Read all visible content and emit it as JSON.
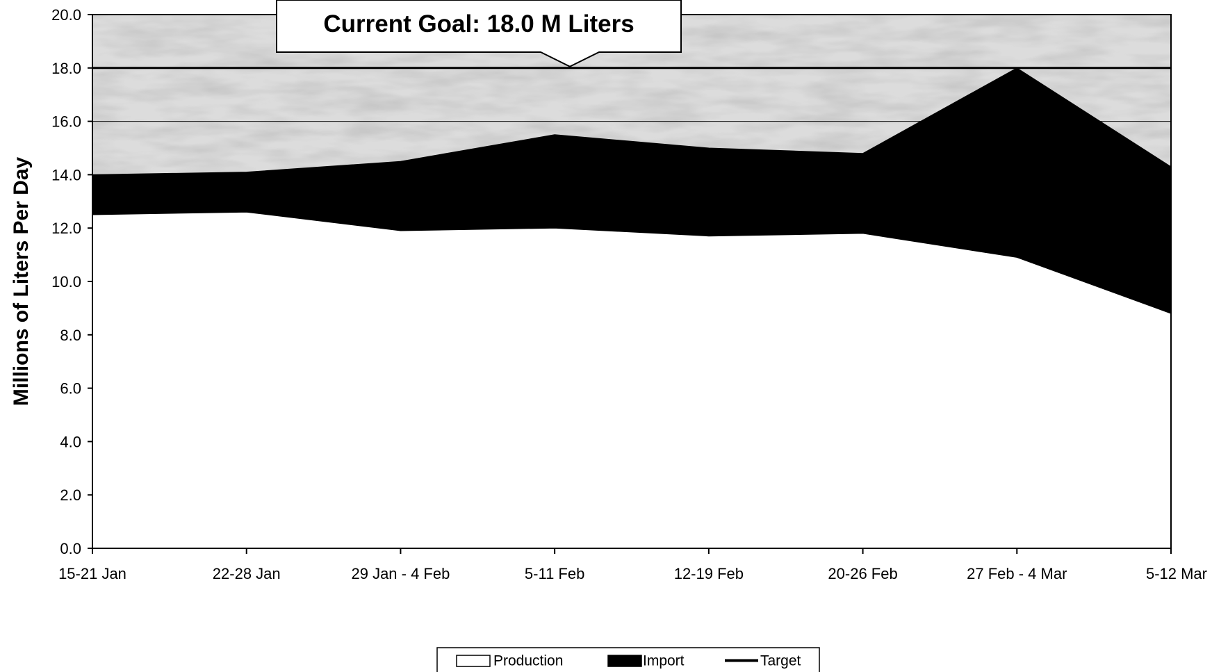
{
  "chart_data": {
    "type": "area",
    "title": "",
    "xlabel": "",
    "ylabel": "Millions of Liters Per Day",
    "ylim": [
      0,
      20
    ],
    "y_ticks": [
      "0.0",
      "2.0",
      "4.0",
      "6.0",
      "8.0",
      "10.0",
      "12.0",
      "14.0",
      "16.0",
      "18.0",
      "20.0"
    ],
    "categories": [
      "15-21 Jan",
      "22-28 Jan",
      "29 Jan - 4 Feb",
      "5-11 Feb",
      "12-19 Feb",
      "20-26 Feb",
      "27 Feb - 4 Mar",
      "5-12 Mar"
    ],
    "series": [
      {
        "name": "Production",
        "kind": "stacked-area",
        "color": "#ffffff",
        "values": [
          12.5,
          12.6,
          11.9,
          12.0,
          11.7,
          11.8,
          10.9,
          8.8
        ]
      },
      {
        "name": "Import",
        "kind": "stacked-area",
        "color": "#000000",
        "values": [
          1.5,
          1.5,
          2.6,
          3.5,
          3.3,
          3.0,
          7.1,
          5.5
        ]
      },
      {
        "name": "Target",
        "kind": "line",
        "color": "#000000",
        "values": [
          18.0,
          18.0,
          18.0,
          18.0,
          18.0,
          18.0,
          18.0,
          18.0
        ]
      }
    ],
    "annotation": {
      "text": "Current Goal:  18.0 M Liters",
      "points_to_value": 18.0
    },
    "grid": true,
    "background": "mottled-gray",
    "legend": {
      "placement": "bottom-center",
      "items": [
        "Production",
        "Import",
        "Target"
      ]
    }
  }
}
